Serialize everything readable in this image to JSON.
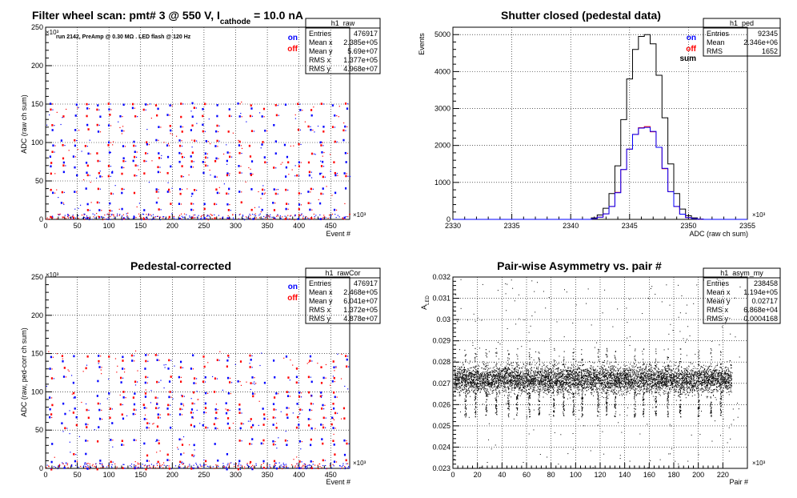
{
  "colors": {
    "on": "#0000ff",
    "off": "#ff0000",
    "sum": "#000000",
    "pedOn": "#0000ff",
    "pedOff": "#ff0000"
  },
  "chart_data": [
    {
      "type": "scatter",
      "title_main": "Filter wheel scan: pmt#   3 @   550 V, I",
      "title_sub": "cathode",
      "title_tail": " = 10.0 nA",
      "annotation": "run 2142, PreAmp @ 0.30 MΩ . LED flash @  120 Hz",
      "ylabel": "ADC (raw ch sum)",
      "xlabel": "Event #",
      "y_exponent": "×10³",
      "x_exponent": "×10³",
      "xlim": [
        0,
        480
      ],
      "ylim": [
        0,
        250
      ],
      "xticks": [
        0,
        50,
        100,
        150,
        200,
        250,
        300,
        350,
        400,
        450
      ],
      "yticks": [
        0,
        50,
        100,
        150,
        200,
        250
      ],
      "legend": [
        "on",
        "off"
      ],
      "levels": [
        151,
        145,
        136,
        123,
        117,
        103,
        98,
        88,
        82,
        76,
        70,
        62,
        58,
        41,
        36,
        22,
        14,
        3
      ],
      "stats": {
        "name": "h1_raw",
        "rows": [
          [
            "Entries",
            "476917"
          ],
          [
            "Mean x",
            "2.385e+05"
          ],
          [
            "Mean y",
            "5.69e+07"
          ],
          [
            "RMS x",
            "1.377e+05"
          ],
          [
            "RMS y",
            "4.968e+07"
          ]
        ]
      }
    },
    {
      "type": "line",
      "title": "Shutter closed (pedestal data)",
      "ylabel": "Events",
      "xlabel": "ADC (raw ch sum)",
      "x_exponent": "×10³",
      "xlim": [
        2330,
        2355
      ],
      "ylim": [
        0,
        5200
      ],
      "xticks": [
        2330,
        2335,
        2340,
        2345,
        2350,
        2355
      ],
      "yticks": [
        0,
        1000,
        2000,
        3000,
        4000,
        5000
      ],
      "legend": [
        "on",
        "off",
        "sum"
      ],
      "series": [
        {
          "name": "sum",
          "x": [
            2342.0,
            2342.5,
            2343.0,
            2343.5,
            2344.0,
            2344.5,
            2345.0,
            2345.5,
            2346.0,
            2346.5,
            2347.0,
            2347.5,
            2348.0,
            2348.5,
            2349.0,
            2349.5,
            2350.0,
            2350.5,
            2351.0
          ],
          "values": [
            40,
            120,
            300,
            700,
            1450,
            2700,
            3800,
            4600,
            4950,
            5000,
            4750,
            3900,
            2750,
            1500,
            700,
            280,
            100,
            40,
            10
          ]
        },
        {
          "name": "on",
          "x": [
            2342.0,
            2342.5,
            2343.0,
            2343.5,
            2344.0,
            2344.5,
            2345.0,
            2345.5,
            2346.0,
            2346.5,
            2347.0,
            2347.5,
            2348.0,
            2348.5,
            2349.0,
            2349.5,
            2350.0,
            2350.5,
            2351.0
          ],
          "values": [
            20,
            60,
            150,
            350,
            720,
            1350,
            1900,
            2300,
            2470,
            2490,
            2380,
            1950,
            1380,
            750,
            350,
            140,
            50,
            20,
            5
          ]
        },
        {
          "name": "off",
          "x": [
            2342.0,
            2342.5,
            2343.0,
            2343.5,
            2344.0,
            2344.5,
            2345.0,
            2345.5,
            2346.0,
            2346.5,
            2347.0,
            2347.5,
            2348.0,
            2348.5,
            2349.0,
            2349.5,
            2350.0,
            2350.5,
            2351.0
          ],
          "values": [
            20,
            60,
            150,
            350,
            730,
            1350,
            1900,
            2300,
            2480,
            2510,
            2370,
            1950,
            1370,
            750,
            350,
            140,
            50,
            20,
            5
          ]
        }
      ],
      "stats": {
        "name": "h1_ped",
        "rows": [
          [
            "Entries",
            "92345"
          ],
          [
            "Mean",
            "2.346e+06"
          ],
          [
            "RMS",
            "1652"
          ]
        ]
      }
    },
    {
      "type": "scatter",
      "title": "Pedestal-corrected",
      "ylabel": "ADC (raw, ped-corr ch sum)",
      "xlabel": "Event #",
      "y_exponent": "×10³",
      "x_exponent": "×10³",
      "xlim": [
        0,
        480
      ],
      "ylim": [
        0,
        250
      ],
      "xticks": [
        0,
        50,
        100,
        150,
        200,
        250,
        300,
        350,
        400,
        450
      ],
      "yticks": [
        0,
        50,
        100,
        150,
        200,
        250
      ],
      "legend": [
        "on",
        "off"
      ],
      "levels": [
        148,
        142,
        133,
        120,
        114,
        100,
        95,
        85,
        79,
        73,
        67,
        59,
        55,
        38,
        33,
        19,
        11,
        1
      ],
      "stats": {
        "name": "h1_rawCor",
        "rows": [
          [
            "Entries",
            "476917"
          ],
          [
            "Mean x",
            "2.468e+05"
          ],
          [
            "Mean y",
            "6.041e+07"
          ],
          [
            "RMS x",
            "1.372e+05"
          ],
          [
            "RMS y",
            "4.878e+07"
          ]
        ]
      }
    },
    {
      "type": "scatter",
      "title": "Pair-wise Asymmetry vs. pair #",
      "ylabel": "A",
      "ylabel_sub": "LED",
      "xlabel": "Pair #",
      "x_exponent": "×10³",
      "xlim": [
        0,
        240
      ],
      "ylim": [
        0.023,
        0.032
      ],
      "xticks": [
        0,
        20,
        40,
        60,
        80,
        100,
        120,
        140,
        160,
        180,
        200,
        220
      ],
      "yticks": [
        0.023,
        0.024,
        0.025,
        0.026,
        0.027,
        0.028,
        0.029,
        0.03,
        0.031,
        0.032
      ],
      "ytick_labels": [
        "0.023",
        "0.024",
        "0.025",
        "0.026",
        "0.027",
        "0.028",
        "0.029",
        "0.03",
        "0.031",
        "0.032"
      ],
      "band_center": 0.0272,
      "band_halfwidth": 0.0007,
      "dips": [
        10,
        18,
        27,
        35,
        45,
        52,
        62,
        70,
        82,
        90,
        98,
        105,
        118,
        125,
        132,
        148,
        155,
        165,
        175,
        185,
        200,
        210,
        218
      ],
      "stats": {
        "name": "h1_asym_my",
        "rows": [
          [
            "Entries",
            "238458"
          ],
          [
            "Mean x",
            "1.194e+05"
          ],
          [
            "Mean y",
            "0.02717"
          ],
          [
            "RMS x",
            "6.868e+04"
          ],
          [
            "RMS y",
            "0.0004168"
          ]
        ]
      }
    }
  ]
}
